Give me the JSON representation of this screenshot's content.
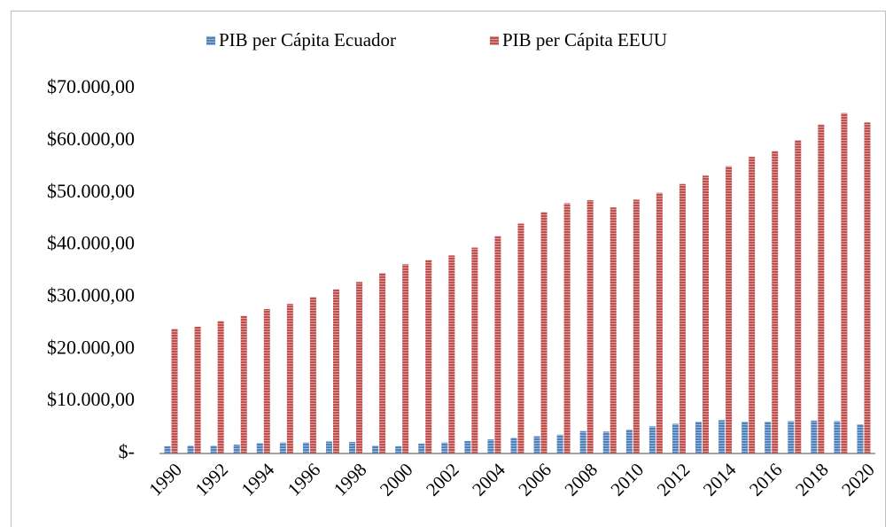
{
  "chart_data": {
    "type": "bar",
    "categories": [
      "1990",
      null,
      "1992",
      null,
      "1994",
      null,
      "1996",
      null,
      "1998",
      null,
      "2000",
      null,
      "2002",
      null,
      "2004",
      null,
      "2006",
      null,
      "2008",
      null,
      "2010",
      null,
      "2012",
      null,
      "2014",
      null,
      "2016",
      null,
      "2018",
      null,
      "2020"
    ],
    "series": [
      {
        "name": "PIB per Cápita Ecuador",
        "color": "#4f81bd",
        "values": [
          1400,
          1500,
          1500,
          1700,
          2000,
          2100,
          2100,
          2300,
          2200,
          1500,
          1400,
          1900,
          2100,
          2400,
          2700,
          3000,
          3300,
          3600,
          4300,
          4200,
          4600,
          5200,
          5700,
          6100,
          6400,
          6100,
          6100,
          6200,
          6300,
          6200,
          5600
        ]
      },
      {
        "name": "PIB per Cápita EEUU",
        "color": "#c0504d",
        "values": [
          23900,
          24300,
          25400,
          26400,
          27700,
          28700,
          30000,
          31500,
          32900,
          34600,
          36300,
          37100,
          38000,
          39500,
          41700,
          44100,
          46300,
          48000,
          48600,
          47200,
          48700,
          50000,
          51700,
          53300,
          55100,
          56900,
          58000,
          60100,
          63100,
          65300,
          63500
        ]
      }
    ],
    "ylim": [
      0,
      70000
    ],
    "yticks": [
      {
        "value": 0,
        "label": "$-"
      },
      {
        "value": 10000,
        "label": "$10.000,00"
      },
      {
        "value": 20000,
        "label": "$20.000,00"
      },
      {
        "value": 30000,
        "label": "$30.000,00"
      },
      {
        "value": 40000,
        "label": "$40.000,00"
      },
      {
        "value": 50000,
        "label": "$50.000,00"
      },
      {
        "value": 60000,
        "label": "$60.000,00"
      },
      {
        "value": 70000,
        "label": "$70.000,00"
      }
    ],
    "legend": "top"
  }
}
